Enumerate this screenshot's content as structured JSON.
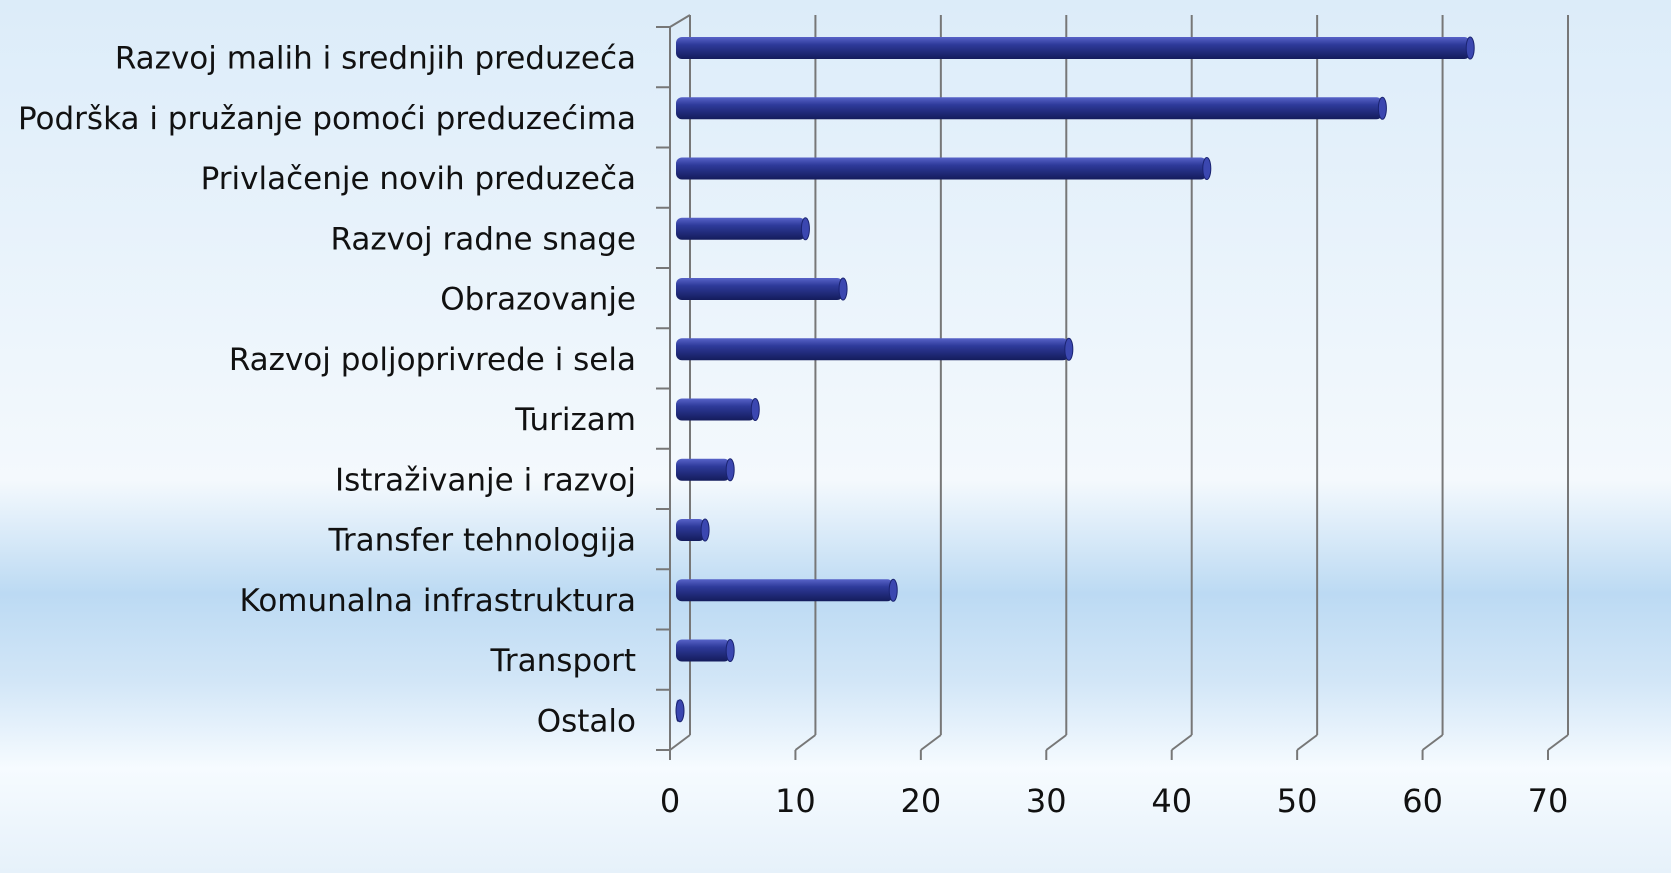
{
  "chart_data": {
    "type": "bar",
    "orientation": "horizontal",
    "categories": [
      "Razvoj malih i srednjih preduzeća",
      "Podrška i pružanje pomoći preduzećima",
      "Privlačenje novih preduzeča",
      "Razvoj radne snage",
      "Obrazovanje",
      "Razvoj poljoprivrede  i sela",
      "Turizam",
      "Istraživanje i razvoj",
      "Transfer tehnologija",
      "Komunalna infrastruktura",
      "Transport",
      "Ostalo"
    ],
    "values": [
      63,
      56,
      42,
      10,
      13,
      31,
      6,
      4,
      2,
      17,
      4,
      0
    ],
    "color": "#2e3a9a",
    "xlim": [
      0,
      70
    ],
    "xticks": [
      0,
      10,
      20,
      30,
      40,
      50,
      60,
      70
    ],
    "grid": true
  }
}
